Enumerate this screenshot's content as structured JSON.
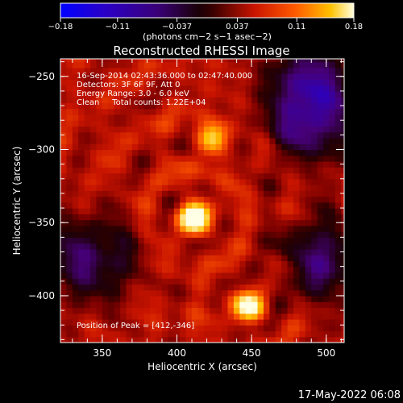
{
  "colorbar": {
    "min_label": "−0.18",
    "tick_labels": [
      "−0.18",
      "−0.11",
      "−0.037",
      "0.037",
      "0.11",
      "0.18"
    ],
    "tick_values": [
      -0.18,
      -0.11,
      -0.037,
      0.037,
      0.11,
      0.18
    ],
    "range": [
      -0.18,
      0.18
    ],
    "units_label": "(photons cm−2 s−1 asec−2)"
  },
  "chart_data": {
    "type": "heatmap",
    "title": "Reconstructed RHESSI Image",
    "xlabel": "Heliocentric X (arcsec)",
    "ylabel": "Heliocentric Y (arcsec)",
    "xlim": [
      322,
      512
    ],
    "ylim": [
      -432,
      -238
    ],
    "x_ticks": [
      350,
      400,
      450,
      500
    ],
    "y_ticks": [
      -250,
      -300,
      -350,
      -400
    ],
    "colormap": "blue-purple-black-red-orange-yellow-white (diverging)",
    "annotations": [
      "16-Sep-2014 02:43:36.000 to 02:47:40.000",
      "Detectors: 3F 6F 9F, Att 0",
      "Energy Range: 3.0 - 6.0 keV",
      "Clean     Total counts: 1.22E+04"
    ],
    "peak_label": "Position of Peak = [412,-346]",
    "peak_position": [
      412,
      -346
    ],
    "sources": [
      {
        "x": 412,
        "y": -346,
        "intensity": 0.18
      },
      {
        "x": 448,
        "y": -407,
        "intensity": 0.14
      },
      {
        "x": 424,
        "y": -292,
        "intensity": 0.11
      }
    ],
    "negative_regions": [
      {
        "x": 490,
        "y": -280,
        "intensity": -0.06
      },
      {
        "x": 342,
        "y": -375,
        "intensity": -0.05
      },
      {
        "x": 498,
        "y": -375,
        "intensity": -0.05
      },
      {
        "x": 490,
        "y": -250,
        "intensity": -0.04
      }
    ]
  },
  "footer": {
    "timestamp": "17-May-2022 06:08"
  }
}
